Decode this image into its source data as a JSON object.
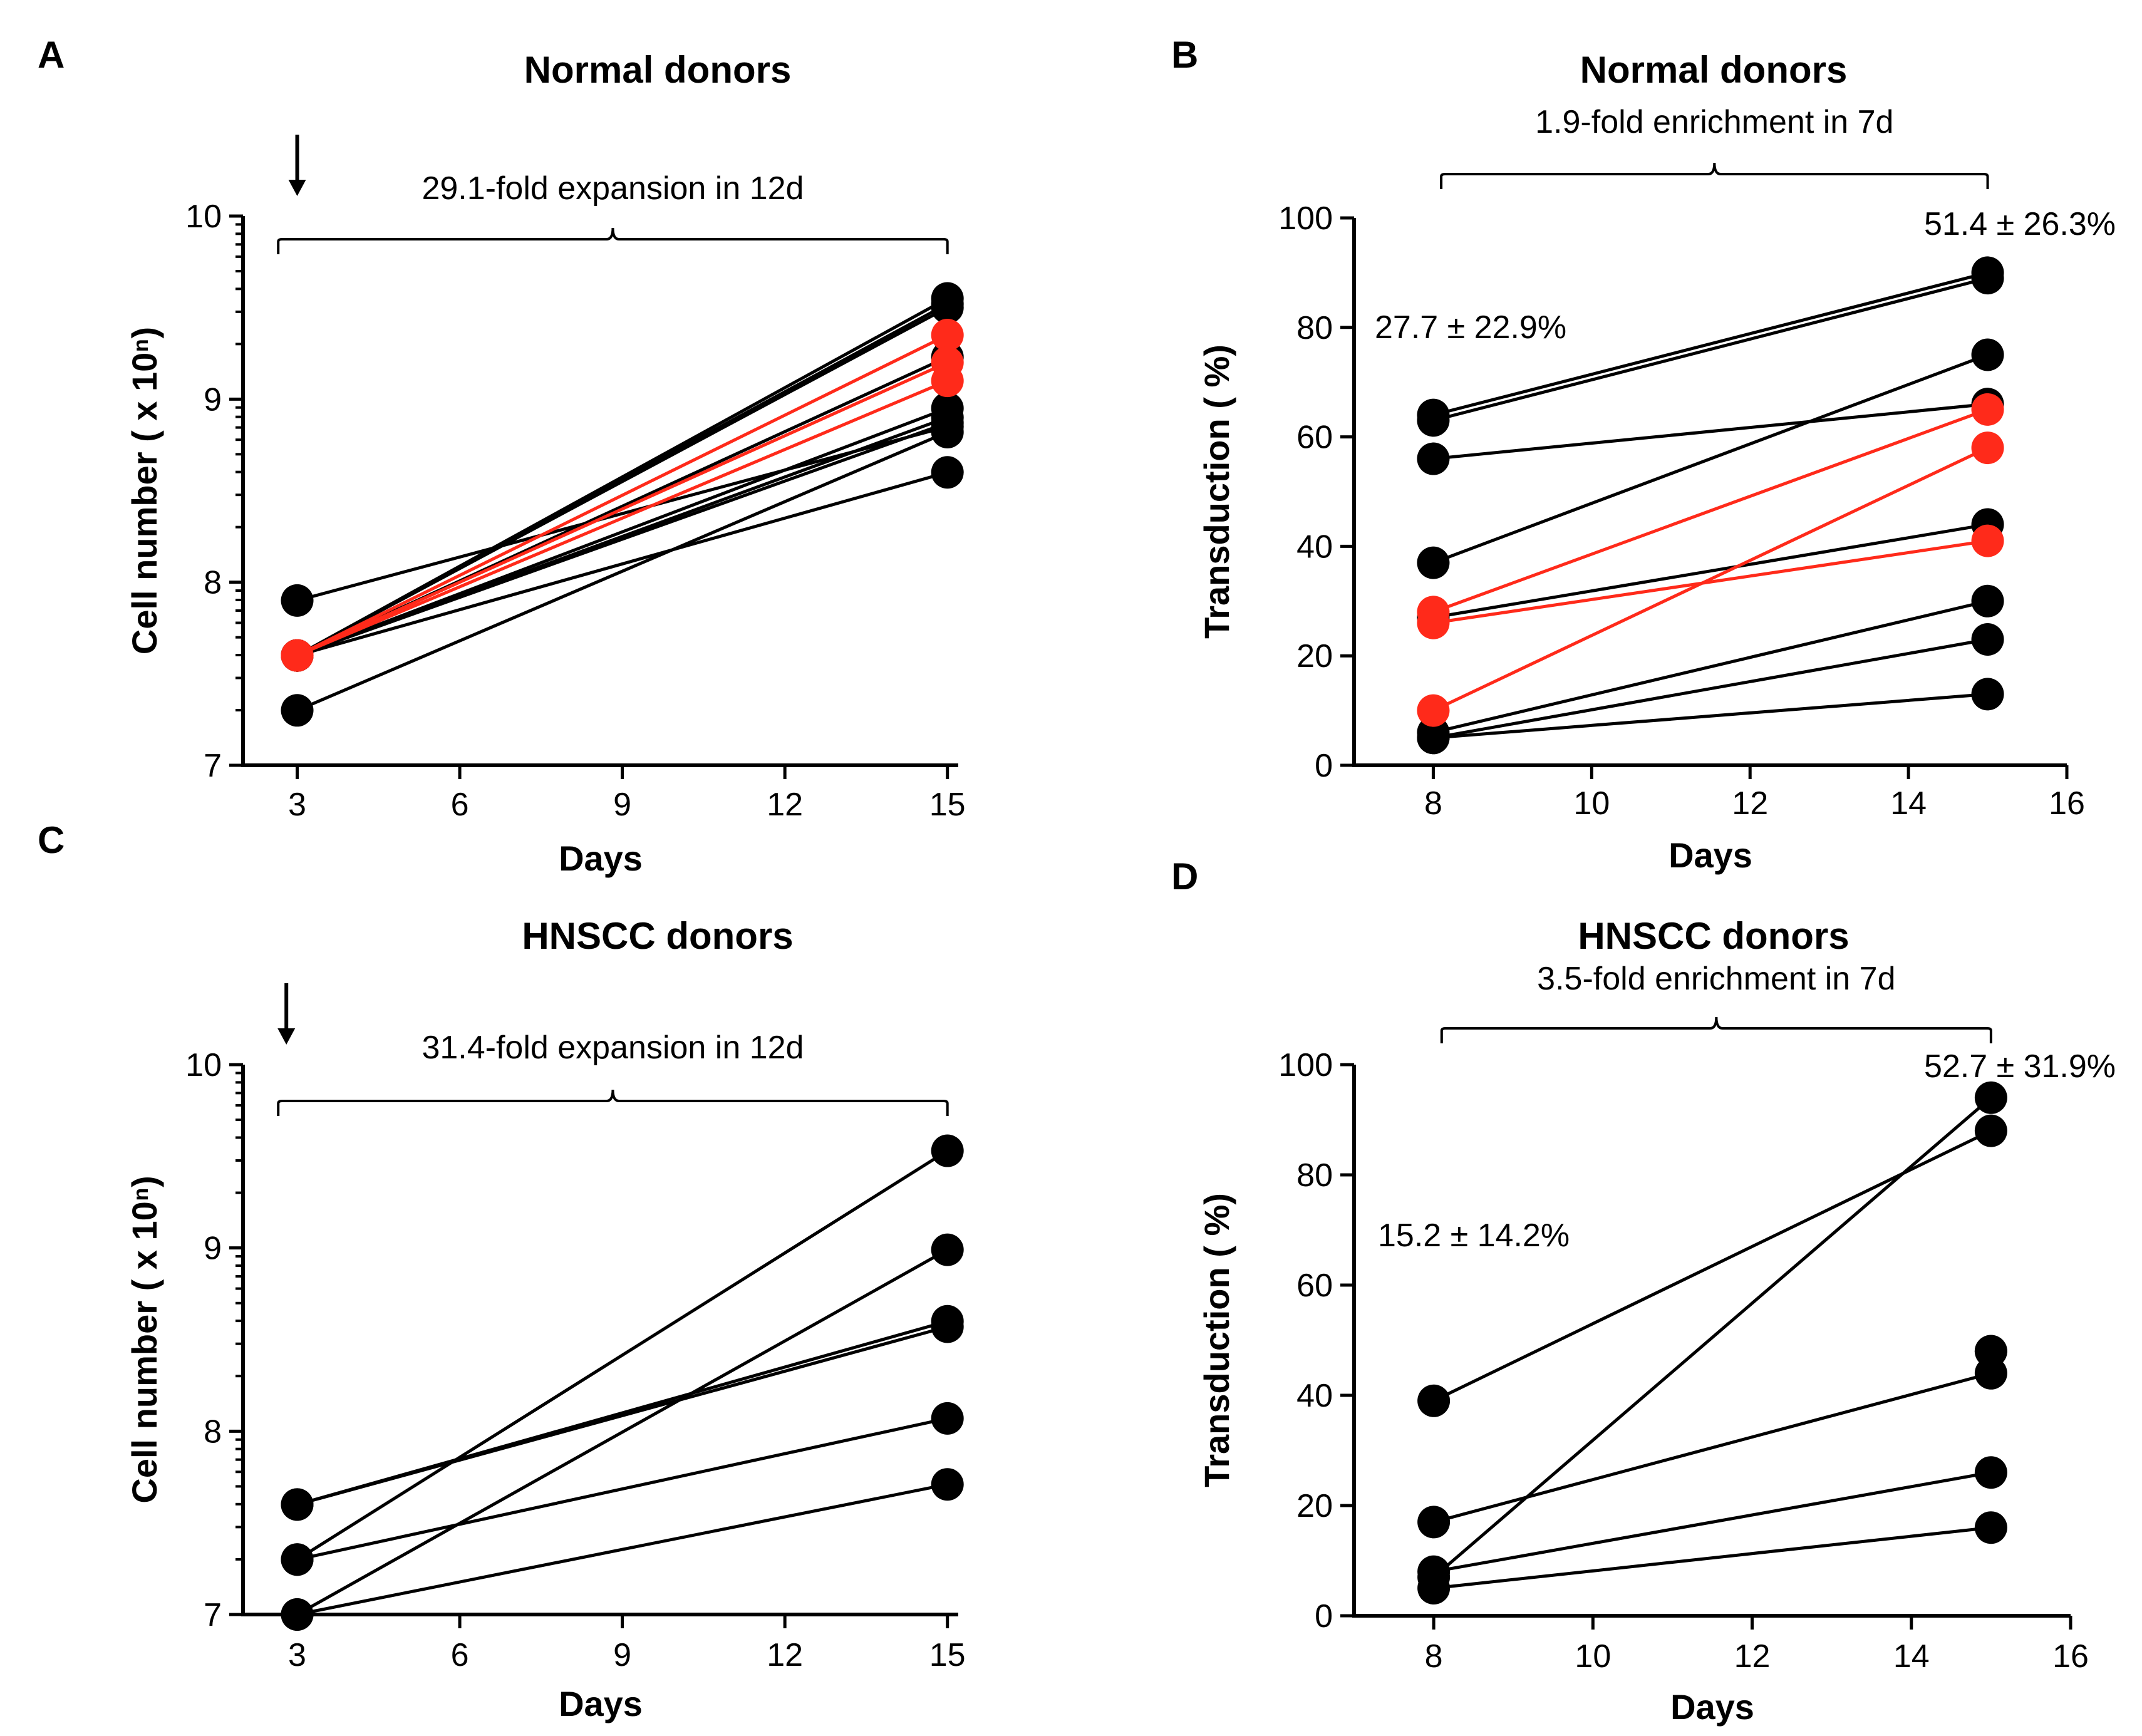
{
  "chart_data": [
    {
      "panel": "A",
      "type": "line",
      "title": "Normal donors",
      "xlabel": "Days",
      "ylabel": "Cell number ( x 10ⁿ)",
      "xticks": [
        "3",
        "6",
        "9",
        "12",
        "15"
      ],
      "yticks": [
        "7",
        "8",
        "9",
        "10"
      ],
      "xlim": [
        2,
        15.2
      ],
      "ylim": [
        7,
        10
      ],
      "annotation": "29.1-fold expansion in 12d",
      "brace_span": [
        2.65,
        15
      ],
      "arrow_at": 3,
      "series": [
        {
          "name": "donor 1",
          "color": "#000000",
          "x": [
            3,
            15
          ],
          "y": [
            7.6,
            9.55
          ]
        },
        {
          "name": "donor 2",
          "color": "#000000",
          "x": [
            3,
            15
          ],
          "y": [
            7.6,
            9.52
          ]
        },
        {
          "name": "donor 3",
          "color": "#000000",
          "x": [
            3,
            15
          ],
          "y": [
            7.6,
            9.5
          ]
        },
        {
          "name": "donor 4",
          "color": "#ff2a1a",
          "x": [
            3,
            15
          ],
          "y": [
            7.6,
            9.35
          ]
        },
        {
          "name": "donor 5",
          "color": "#000000",
          "x": [
            3,
            15
          ],
          "y": [
            7.6,
            9.23
          ]
        },
        {
          "name": "donor 6",
          "color": "#ff2a1a",
          "x": [
            3,
            15
          ],
          "y": [
            7.6,
            9.2
          ]
        },
        {
          "name": "donor 7",
          "color": "#ff2a1a",
          "x": [
            3,
            15
          ],
          "y": [
            7.6,
            9.1
          ]
        },
        {
          "name": "donor 8",
          "color": "#000000",
          "x": [
            3,
            15
          ],
          "y": [
            7.6,
            8.95
          ]
        },
        {
          "name": "donor 9",
          "color": "#000000",
          "x": [
            3,
            15
          ],
          "y": [
            7.6,
            8.9
          ]
        },
        {
          "name": "donor 10",
          "color": "#000000",
          "x": [
            3,
            15
          ],
          "y": [
            7.6,
            8.87
          ]
        },
        {
          "name": "donor 11",
          "color": "#000000",
          "x": [
            3,
            15
          ],
          "y": [
            7.9,
            8.85
          ]
        },
        {
          "name": "donor 12",
          "color": "#000000",
          "x": [
            3,
            15
          ],
          "y": [
            7.3,
            8.82
          ]
        },
        {
          "name": "donor 13",
          "color": "#000000",
          "x": [
            3,
            15
          ],
          "y": [
            7.6,
            8.6
          ]
        }
      ]
    },
    {
      "panel": "B",
      "type": "line",
      "title": "Normal donors",
      "xlabel": "Days",
      "ylabel": "Transduction ( %)",
      "xticks": [
        "8",
        "10",
        "12",
        "14",
        "16"
      ],
      "yticks": [
        "0",
        "20",
        "40",
        "60",
        "80",
        "100"
      ],
      "xlim": [
        7,
        16
      ],
      "ylim": [
        0,
        100
      ],
      "annotation": "1.9-fold enrichment in 7d",
      "brace_span": [
        8.1,
        15
      ],
      "left_label": "27.7 ± 22.9%",
      "right_label": "51.4 ± 26.3%",
      "series": [
        {
          "name": "donor 1",
          "color": "#000000",
          "x": [
            8,
            15
          ],
          "y": [
            64,
            90
          ]
        },
        {
          "name": "donor 2",
          "color": "#000000",
          "x": [
            8,
            15
          ],
          "y": [
            63,
            89
          ]
        },
        {
          "name": "donor 3",
          "color": "#000000",
          "x": [
            8,
            15
          ],
          "y": [
            56,
            66
          ]
        },
        {
          "name": "donor 4",
          "color": "#000000",
          "x": [
            8,
            15
          ],
          "y": [
            37,
            75
          ]
        },
        {
          "name": "donor 5",
          "color": "#000000",
          "x": [
            8,
            15
          ],
          "y": [
            27,
            44
          ]
        },
        {
          "name": "donor 6",
          "color": "#000000",
          "x": [
            8,
            15
          ],
          "y": [
            6,
            30
          ]
        },
        {
          "name": "donor 7",
          "color": "#000000",
          "x": [
            8,
            15
          ],
          "y": [
            5,
            23
          ]
        },
        {
          "name": "donor 8",
          "color": "#000000",
          "x": [
            8,
            15
          ],
          "y": [
            5,
            13
          ]
        },
        {
          "name": "donor 9",
          "color": "#ff2a1a",
          "x": [
            8,
            15
          ],
          "y": [
            28,
            65
          ]
        },
        {
          "name": "donor 10",
          "color": "#ff2a1a",
          "x": [
            8,
            15
          ],
          "y": [
            10,
            58
          ]
        },
        {
          "name": "donor 11",
          "color": "#ff2a1a",
          "x": [
            8,
            15
          ],
          "y": [
            26,
            41
          ]
        }
      ]
    },
    {
      "panel": "C",
      "type": "line",
      "title": "HNSCC donors",
      "xlabel": "Days",
      "ylabel": "Cell number ( x 10ⁿ)",
      "xticks": [
        "3",
        "6",
        "9",
        "12",
        "15"
      ],
      "yticks": [
        "7",
        "8",
        "9",
        "10"
      ],
      "xlim": [
        2,
        15.2
      ],
      "ylim": [
        7,
        10
      ],
      "annotation": "31.4-fold expansion in 12d",
      "brace_span": [
        2.65,
        15
      ],
      "arrow_at": 2.8,
      "series": [
        {
          "name": "donor 1",
          "color": "#000000",
          "x": [
            3,
            15
          ],
          "y": [
            7.3,
            9.53
          ]
        },
        {
          "name": "donor 2",
          "color": "#000000",
          "x": [
            3,
            15
          ],
          "y": [
            7.0,
            8.99
          ]
        },
        {
          "name": "donor 3",
          "color": "#000000",
          "x": [
            3,
            15
          ],
          "y": [
            7.6,
            8.6
          ]
        },
        {
          "name": "donor 4",
          "color": "#000000",
          "x": [
            3,
            15
          ],
          "y": [
            7.6,
            8.57
          ]
        },
        {
          "name": "donor 5",
          "color": "#000000",
          "x": [
            3,
            15
          ],
          "y": [
            7.3,
            8.07
          ]
        },
        {
          "name": "donor 6",
          "color": "#000000",
          "x": [
            3,
            15
          ],
          "y": [
            7.0,
            7.71
          ]
        }
      ]
    },
    {
      "panel": "D",
      "type": "line",
      "title": "HNSCC donors",
      "xlabel": "Days",
      "ylabel": "Transduction ( %)",
      "xticks": [
        "8",
        "10",
        "12",
        "14",
        "16"
      ],
      "yticks": [
        "0",
        "20",
        "40",
        "60",
        "80",
        "100"
      ],
      "xlim": [
        7,
        16
      ],
      "ylim": [
        0,
        100
      ],
      "annotation": "3.5-fold enrichment in 7d",
      "brace_span": [
        8.1,
        15
      ],
      "left_label": "15.2 ± 14.2%",
      "right_label": "52.7 ± 31.9%",
      "series": [
        {
          "name": "donor 1",
          "color": "#000000",
          "x": [
            8,
            15
          ],
          "y": [
            39,
            88
          ]
        },
        {
          "name": "donor 2",
          "color": "#000000",
          "x": [
            8,
            15
          ],
          "y": [
            7,
            94
          ]
        },
        {
          "name": "donor 3",
          "color": "#000000",
          "x": [
            8,
            15
          ],
          "y": [
            17,
            44
          ]
        },
        {
          "name": "donor 4",
          "color": "#000000",
          "x": [
            8,
            15
          ],
          "y": [
            8,
            26
          ]
        },
        {
          "name": "donor 5",
          "color": "#000000",
          "x": [
            8,
            15
          ],
          "y": [
            5,
            16
          ]
        },
        {
          "name": "donor 6",
          "color": "#000000",
          "x": [
            15,
            15
          ],
          "y": [
            48,
            48
          ]
        }
      ]
    }
  ]
}
